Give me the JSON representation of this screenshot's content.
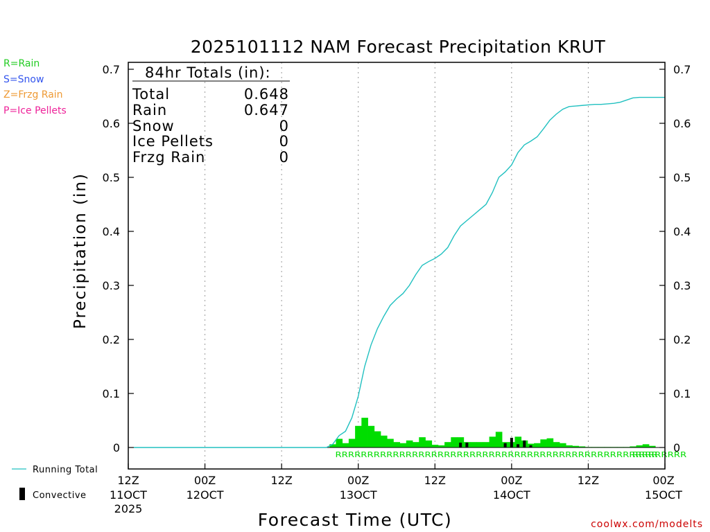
{
  "chart_data": {
    "type": "bar",
    "title": "2025101112 NAM Forecast Precipitation KRUT",
    "xlabel": "Forecast Time (UTC)",
    "ylabel": "Precipitation (in)",
    "ylim": [
      0,
      0.7
    ],
    "xlim_hours": [
      0,
      84
    ],
    "y_ticks": [
      "0",
      "0.1",
      "0.2",
      "0.3",
      "0.4",
      "0.5",
      "0.6",
      "0.7"
    ],
    "y_tick_values": [
      0,
      0.1,
      0.2,
      0.3,
      0.4,
      0.5,
      0.6,
      0.7
    ],
    "x_ticks": [
      {
        "hour": 0,
        "l1": "12Z",
        "l2": "11OCT",
        "l3": "2025"
      },
      {
        "hour": 12,
        "l1": "00Z",
        "l2": "12OCT",
        "l3": ""
      },
      {
        "hour": 24,
        "l1": "12Z",
        "l2": "",
        "l3": ""
      },
      {
        "hour": 36,
        "l1": "00Z",
        "l2": "13OCT",
        "l3": ""
      },
      {
        "hour": 48,
        "l1": "12Z",
        "l2": "",
        "l3": ""
      },
      {
        "hour": 60,
        "l1": "00Z",
        "l2": "14OCT",
        "l3": ""
      },
      {
        "hour": 72,
        "l1": "12Z",
        "l2": "",
        "l3": ""
      },
      {
        "hour": 84,
        "l1": "00Z",
        "l2": "15OCT",
        "l3": ""
      }
    ],
    "series": [
      {
        "name": "Hourly Precipitation",
        "color": "#00dd00",
        "hours": [
          32,
          33,
          34,
          35,
          36,
          37,
          38,
          39,
          40,
          41,
          42,
          43,
          44,
          45,
          46,
          47,
          48,
          49,
          50,
          51,
          52,
          53,
          54,
          55,
          56,
          57,
          58,
          59,
          60,
          61,
          62,
          63,
          64,
          65,
          66,
          67,
          68,
          69,
          70,
          71,
          72,
          73,
          74,
          75,
          76,
          77,
          78,
          79,
          80,
          81,
          82
        ],
        "values": [
          0.006,
          0.016,
          0.008,
          0.016,
          0.04,
          0.055,
          0.04,
          0.03,
          0.022,
          0.016,
          0.01,
          0.008,
          0.013,
          0.01,
          0.019,
          0.013,
          0.005,
          0.004,
          0.01,
          0.019,
          0.019,
          0.01,
          0.01,
          0.01,
          0.01,
          0.02,
          0.029,
          0.01,
          0.01,
          0.02,
          0.013,
          0.007,
          0.008,
          0.015,
          0.017,
          0.01,
          0.008,
          0.004,
          0.003,
          0.002,
          0.001,
          0.001,
          0.001,
          0.001,
          0.001,
          0.001,
          0.001,
          0.002,
          0.004,
          0.006,
          0.003
        ]
      },
      {
        "name": "Convective",
        "color": "#000000",
        "hours": [
          52,
          53,
          59,
          60,
          61,
          62,
          63
        ],
        "values": [
          0.009,
          0.009,
          0.008,
          0.018,
          0.006,
          0.013,
          0.004
        ]
      },
      {
        "name": "Running Total",
        "color": "#20c0c0",
        "hours": [
          0,
          31,
          32,
          33,
          34,
          35,
          36,
          37,
          38,
          39,
          40,
          41,
          42,
          43,
          44,
          45,
          46,
          47,
          48,
          49,
          50,
          51,
          52,
          53,
          54,
          55,
          56,
          57,
          58,
          59,
          60,
          61,
          62,
          63,
          64,
          65,
          66,
          67,
          68,
          69,
          70,
          71,
          72,
          73,
          74,
          75,
          76,
          77,
          78,
          79,
          80,
          81,
          82,
          83,
          84
        ],
        "values": [
          0,
          0,
          0.006,
          0.022,
          0.03,
          0.055,
          0.095,
          0.15,
          0.19,
          0.22,
          0.243,
          0.263,
          0.275,
          0.285,
          0.3,
          0.32,
          0.337,
          0.344,
          0.35,
          0.358,
          0.37,
          0.392,
          0.41,
          0.42,
          0.43,
          0.44,
          0.45,
          0.472,
          0.5,
          0.51,
          0.523,
          0.546,
          0.56,
          0.567,
          0.575,
          0.59,
          0.606,
          0.617,
          0.626,
          0.631,
          0.632,
          0.633,
          0.634,
          0.635,
          0.635,
          0.636,
          0.637,
          0.639,
          0.643,
          0.647,
          0.648,
          0.648,
          0.648,
          0.648,
          0.648
        ]
      }
    ],
    "precip_type_markers": {
      "color": "#00dd00",
      "runs": [
        {
          "text": "RRRRRRRRRRRRRRRRRRRRRRRRRRRRRRRRRRRRRRRRRRRRRRRRRRRRRRR",
          "start_hour": 32.5
        },
        {
          "text": "RRRR",
          "start_hour": 79
        }
      ]
    },
    "totals_box": {
      "heading": "84hr Totals (in):",
      "rows": [
        {
          "label": "Total",
          "value": "0.648"
        },
        {
          "label": "Rain",
          "value": "0.647"
        },
        {
          "label": "Snow",
          "value": "0"
        },
        {
          "label": "Ice Pellets",
          "value": "0"
        },
        {
          "label": "Frzg Rain",
          "value": "0"
        }
      ]
    },
    "type_legend": [
      {
        "text": "R=Rain",
        "color": "#22cc22"
      },
      {
        "text": "S=Snow",
        "color": "#3355ee"
      },
      {
        "text": "Z=Frzg Rain",
        "color": "#ee9933"
      },
      {
        "text": "P=Ice Pellets",
        "color": "#ee2299"
      }
    ],
    "line_legend": [
      {
        "text": "Running Total",
        "kind": "line",
        "color": "#20c0c0"
      },
      {
        "text": "Convective",
        "kind": "bar",
        "color": "#000000"
      }
    ],
    "credit": "coolwx.com/modelts",
    "credit_color": "#cc0000",
    "grid": "vertical dotted at 12-hour ticks"
  }
}
